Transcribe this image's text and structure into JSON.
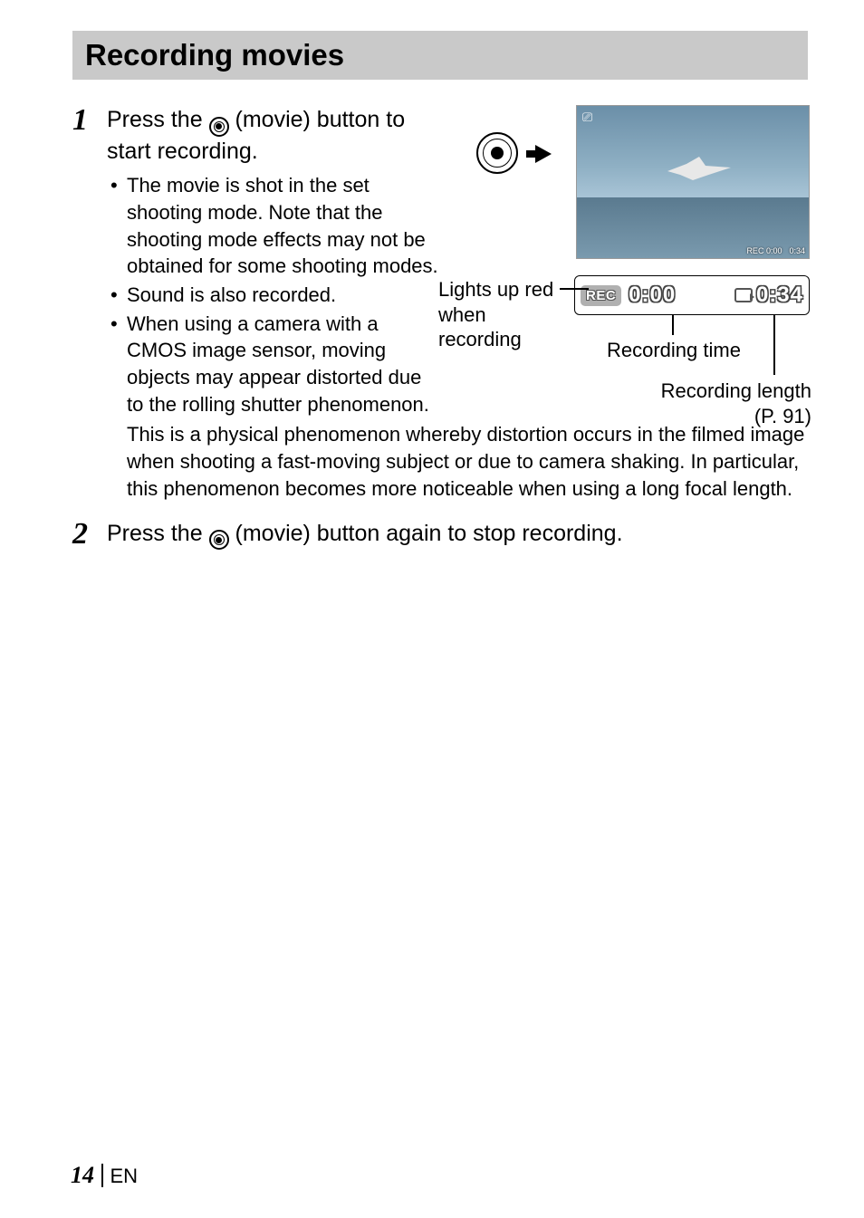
{
  "title": "Recording movies",
  "step1": {
    "num": "1",
    "head_before": "Press the ",
    "head_after": " (movie) button to start recording.",
    "bullets": [
      "The movie is shot in the set shooting mode. Note that the shooting mode effects may not be obtained for some shooting modes.",
      "Sound is also recorded.",
      "When using a camera with a CMOS image sensor, moving objects may appear distorted due to the rolling shutter phenomenon."
    ],
    "wrap": "This is a physical phenomenon whereby distortion occurs in the filmed image when shooting a fast-moving subject or due to camera shaking. In particular, this phenomenon becomes more noticeable when using a long focal length."
  },
  "diagram": {
    "lights_label": "Lights up red when recording",
    "rec_text": "REC",
    "rec_time": "0:00",
    "len_time": "0:34",
    "screen_small_rec": "REC 0:00",
    "screen_small_len": "0:34",
    "rectime_label": "Recording time",
    "reclen_label": "Recording length",
    "reclen_page": "(P. 91)"
  },
  "step2": {
    "num": "2",
    "head_before": "Press the ",
    "head_after": " (movie) button again to stop recording."
  },
  "footer": {
    "page": "14",
    "lang": "EN"
  },
  "colors": {
    "title_bg": "#c9c9c9",
    "text": "#000000",
    "screen_sky": "#8fb0c4",
    "badge_bg": "#b0b0b0"
  }
}
